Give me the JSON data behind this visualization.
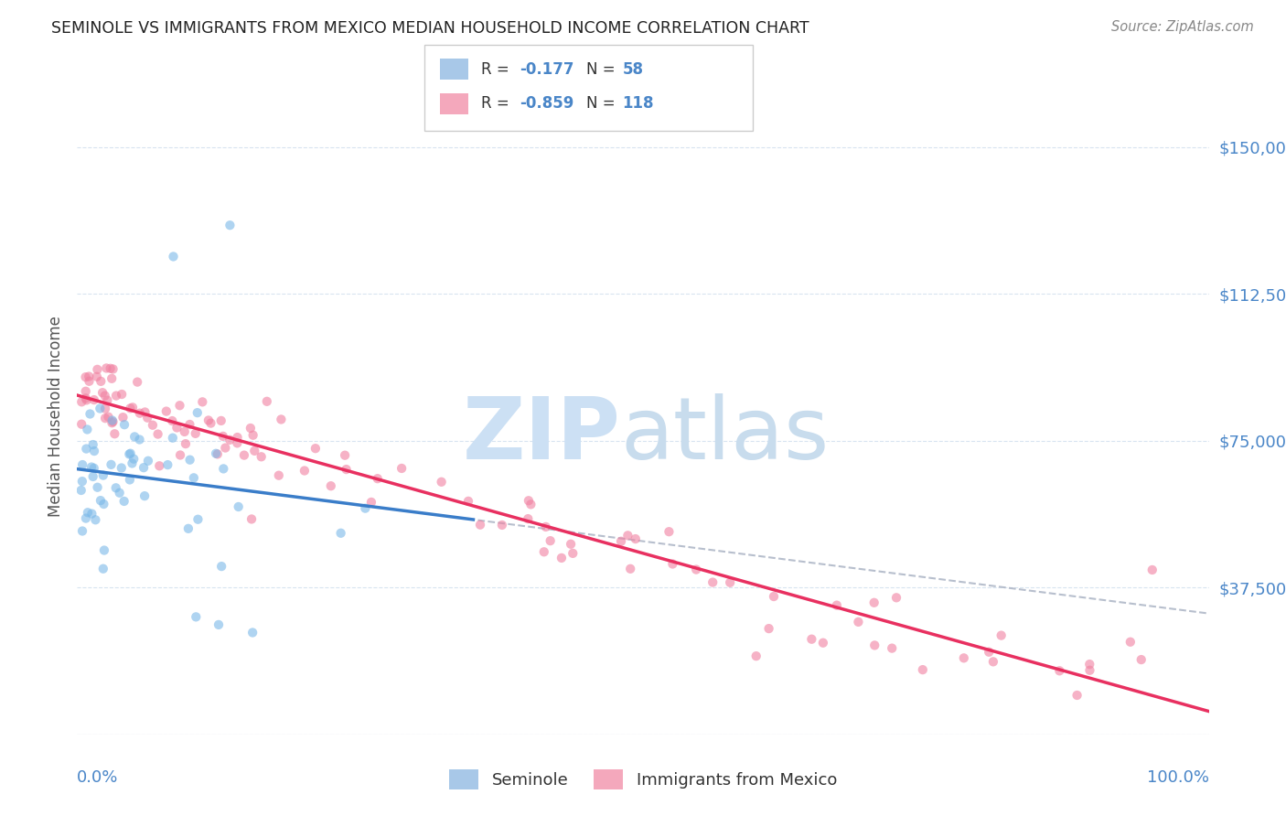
{
  "title": "SEMINOLE VS IMMIGRANTS FROM MEXICO MEDIAN HOUSEHOLD INCOME CORRELATION CHART",
  "source": "Source: ZipAtlas.com",
  "ylabel": "Median Household Income",
  "ytick_vals": [
    0,
    37500,
    75000,
    112500,
    150000
  ],
  "ytick_labels": [
    "",
    "$37,500",
    "$75,000",
    "$112,500",
    "$150,000"
  ],
  "xlim": [
    0,
    100
  ],
  "ylim": [
    0,
    162500
  ],
  "background_color": "#ffffff",
  "title_color": "#222222",
  "source_color": "#888888",
  "axis_color": "#4a86c8",
  "ylabel_color": "#555555",
  "grid_color": "#d8e4f0",
  "seminole_dot_color": "#7ab8e8",
  "seminole_line_color": "#3a7dc9",
  "mexico_dot_color": "#f080a0",
  "mexico_line_color": "#e83060",
  "dash_line_color": "#b0b8c8",
  "legend_box_color": "#ffffff",
  "legend_border_color": "#cccccc",
  "legend_R_color": "#4a86c8",
  "legend_N_color": "#4a86c8",
  "legend_text_color": "#333333",
  "watermark_zip_color": "#cce0f4",
  "watermark_atlas_color": "#c8dced",
  "seminole_legend_color": "#a8c8e8",
  "mexico_legend_color": "#f4a8bc"
}
